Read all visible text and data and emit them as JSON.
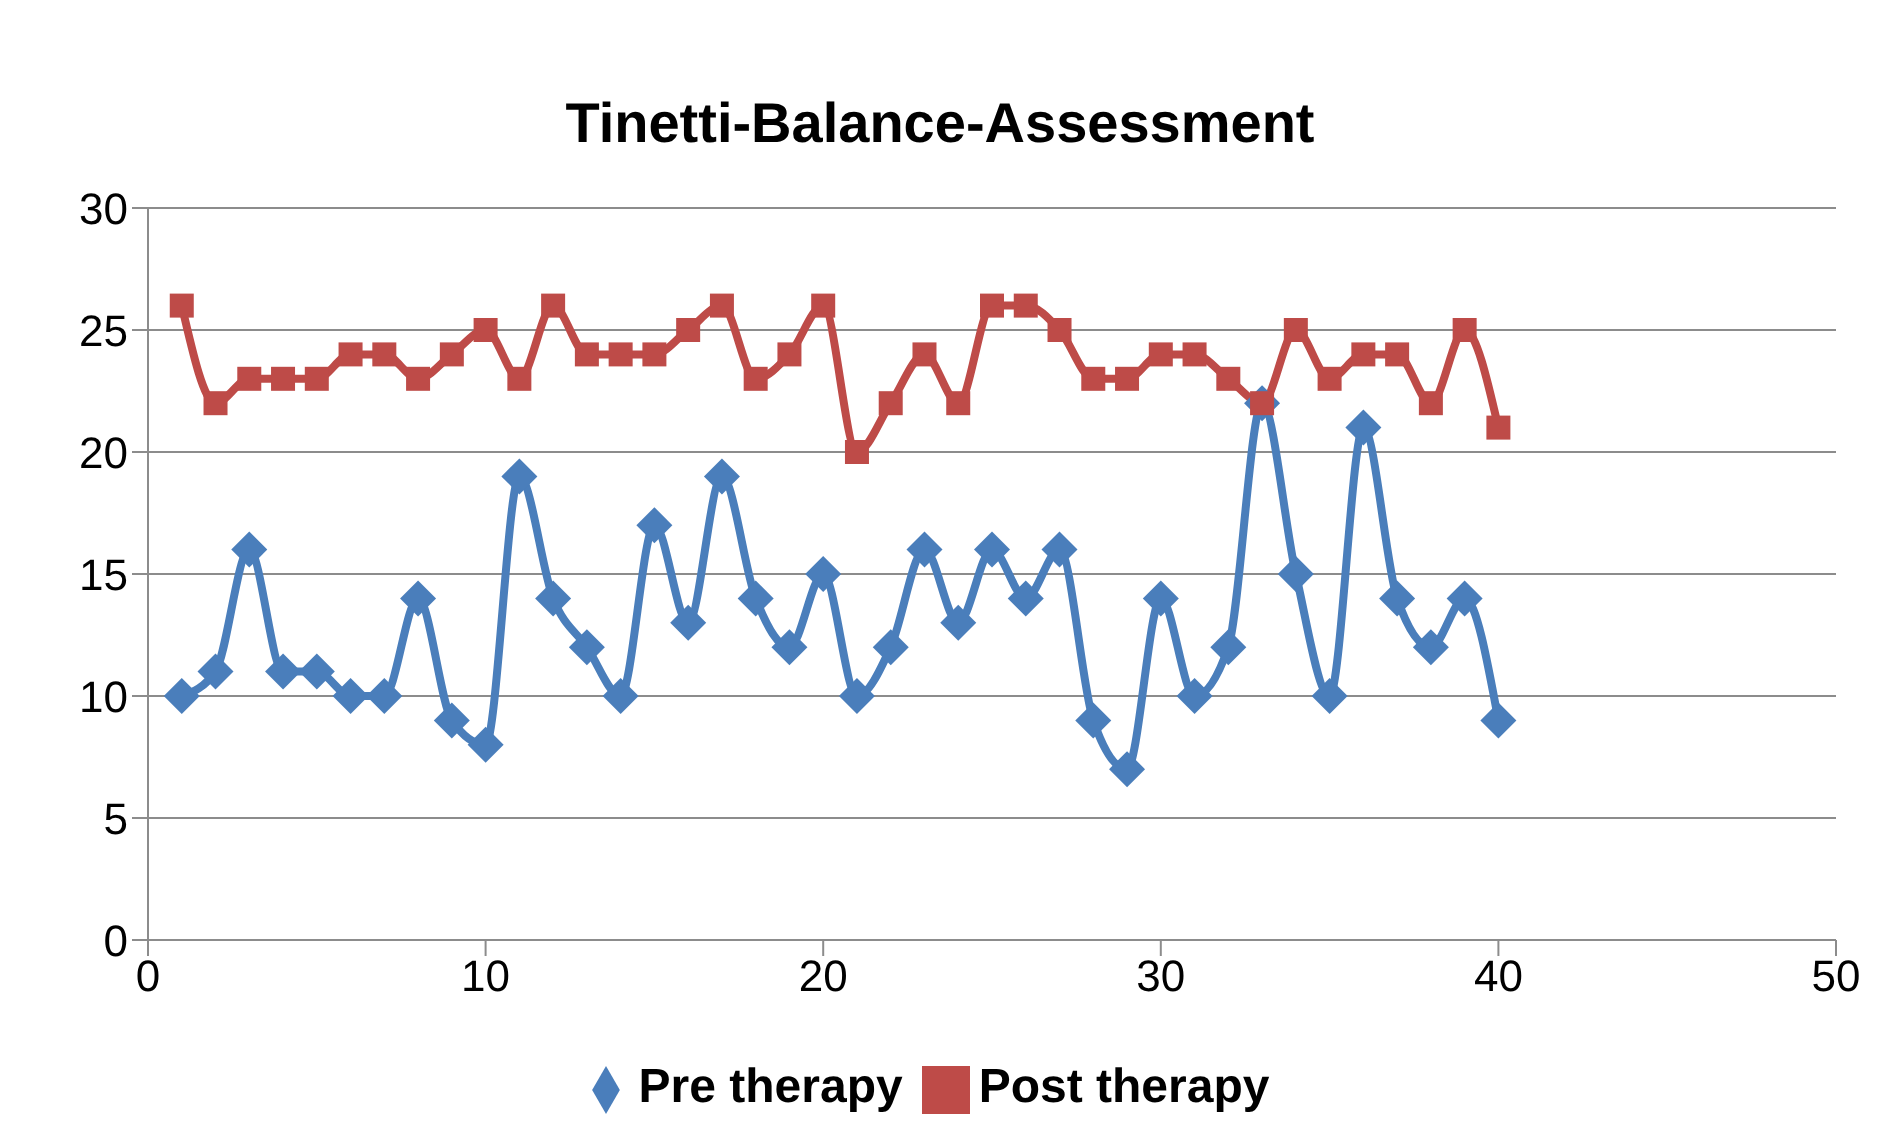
{
  "chart_data": {
    "type": "line",
    "title": "Tinetti-Balance-Assessment",
    "x": [
      1,
      2,
      3,
      4,
      5,
      6,
      7,
      8,
      9,
      10,
      11,
      12,
      13,
      14,
      15,
      16,
      17,
      18,
      19,
      20,
      21,
      22,
      23,
      24,
      25,
      26,
      27,
      28,
      29,
      30,
      31,
      32,
      33,
      34,
      35,
      36,
      37,
      38,
      39,
      40
    ],
    "series": [
      {
        "name": "Pre therapy",
        "color": "#4a7ebb",
        "marker": "diamond",
        "values": [
          10,
          11,
          16,
          11,
          11,
          10,
          10,
          14,
          9,
          8,
          19,
          14,
          12,
          10,
          17,
          13,
          19,
          14,
          12,
          15,
          10,
          12,
          16,
          13,
          16,
          14,
          16,
          9,
          7,
          14,
          10,
          12,
          22,
          15,
          10,
          21,
          14,
          12,
          14,
          9
        ]
      },
      {
        "name": "Post therapy",
        "color": "#be4b48",
        "marker": "square",
        "values": [
          26,
          22,
          23,
          23,
          23,
          24,
          24,
          23,
          24,
          25,
          23,
          26,
          24,
          24,
          24,
          25,
          26,
          23,
          24,
          26,
          20,
          22,
          24,
          22,
          26,
          26,
          25,
          23,
          23,
          24,
          24,
          23,
          22,
          25,
          23,
          24,
          24,
          22,
          25,
          21
        ]
      }
    ],
    "xlim": [
      0,
      50
    ],
    "xticks": [
      0,
      10,
      20,
      30,
      40,
      50
    ],
    "ylim": [
      0,
      30
    ],
    "yticks": [
      0,
      5,
      10,
      15,
      20,
      25,
      30
    ],
    "grid": "y",
    "legend": "bottom"
  }
}
